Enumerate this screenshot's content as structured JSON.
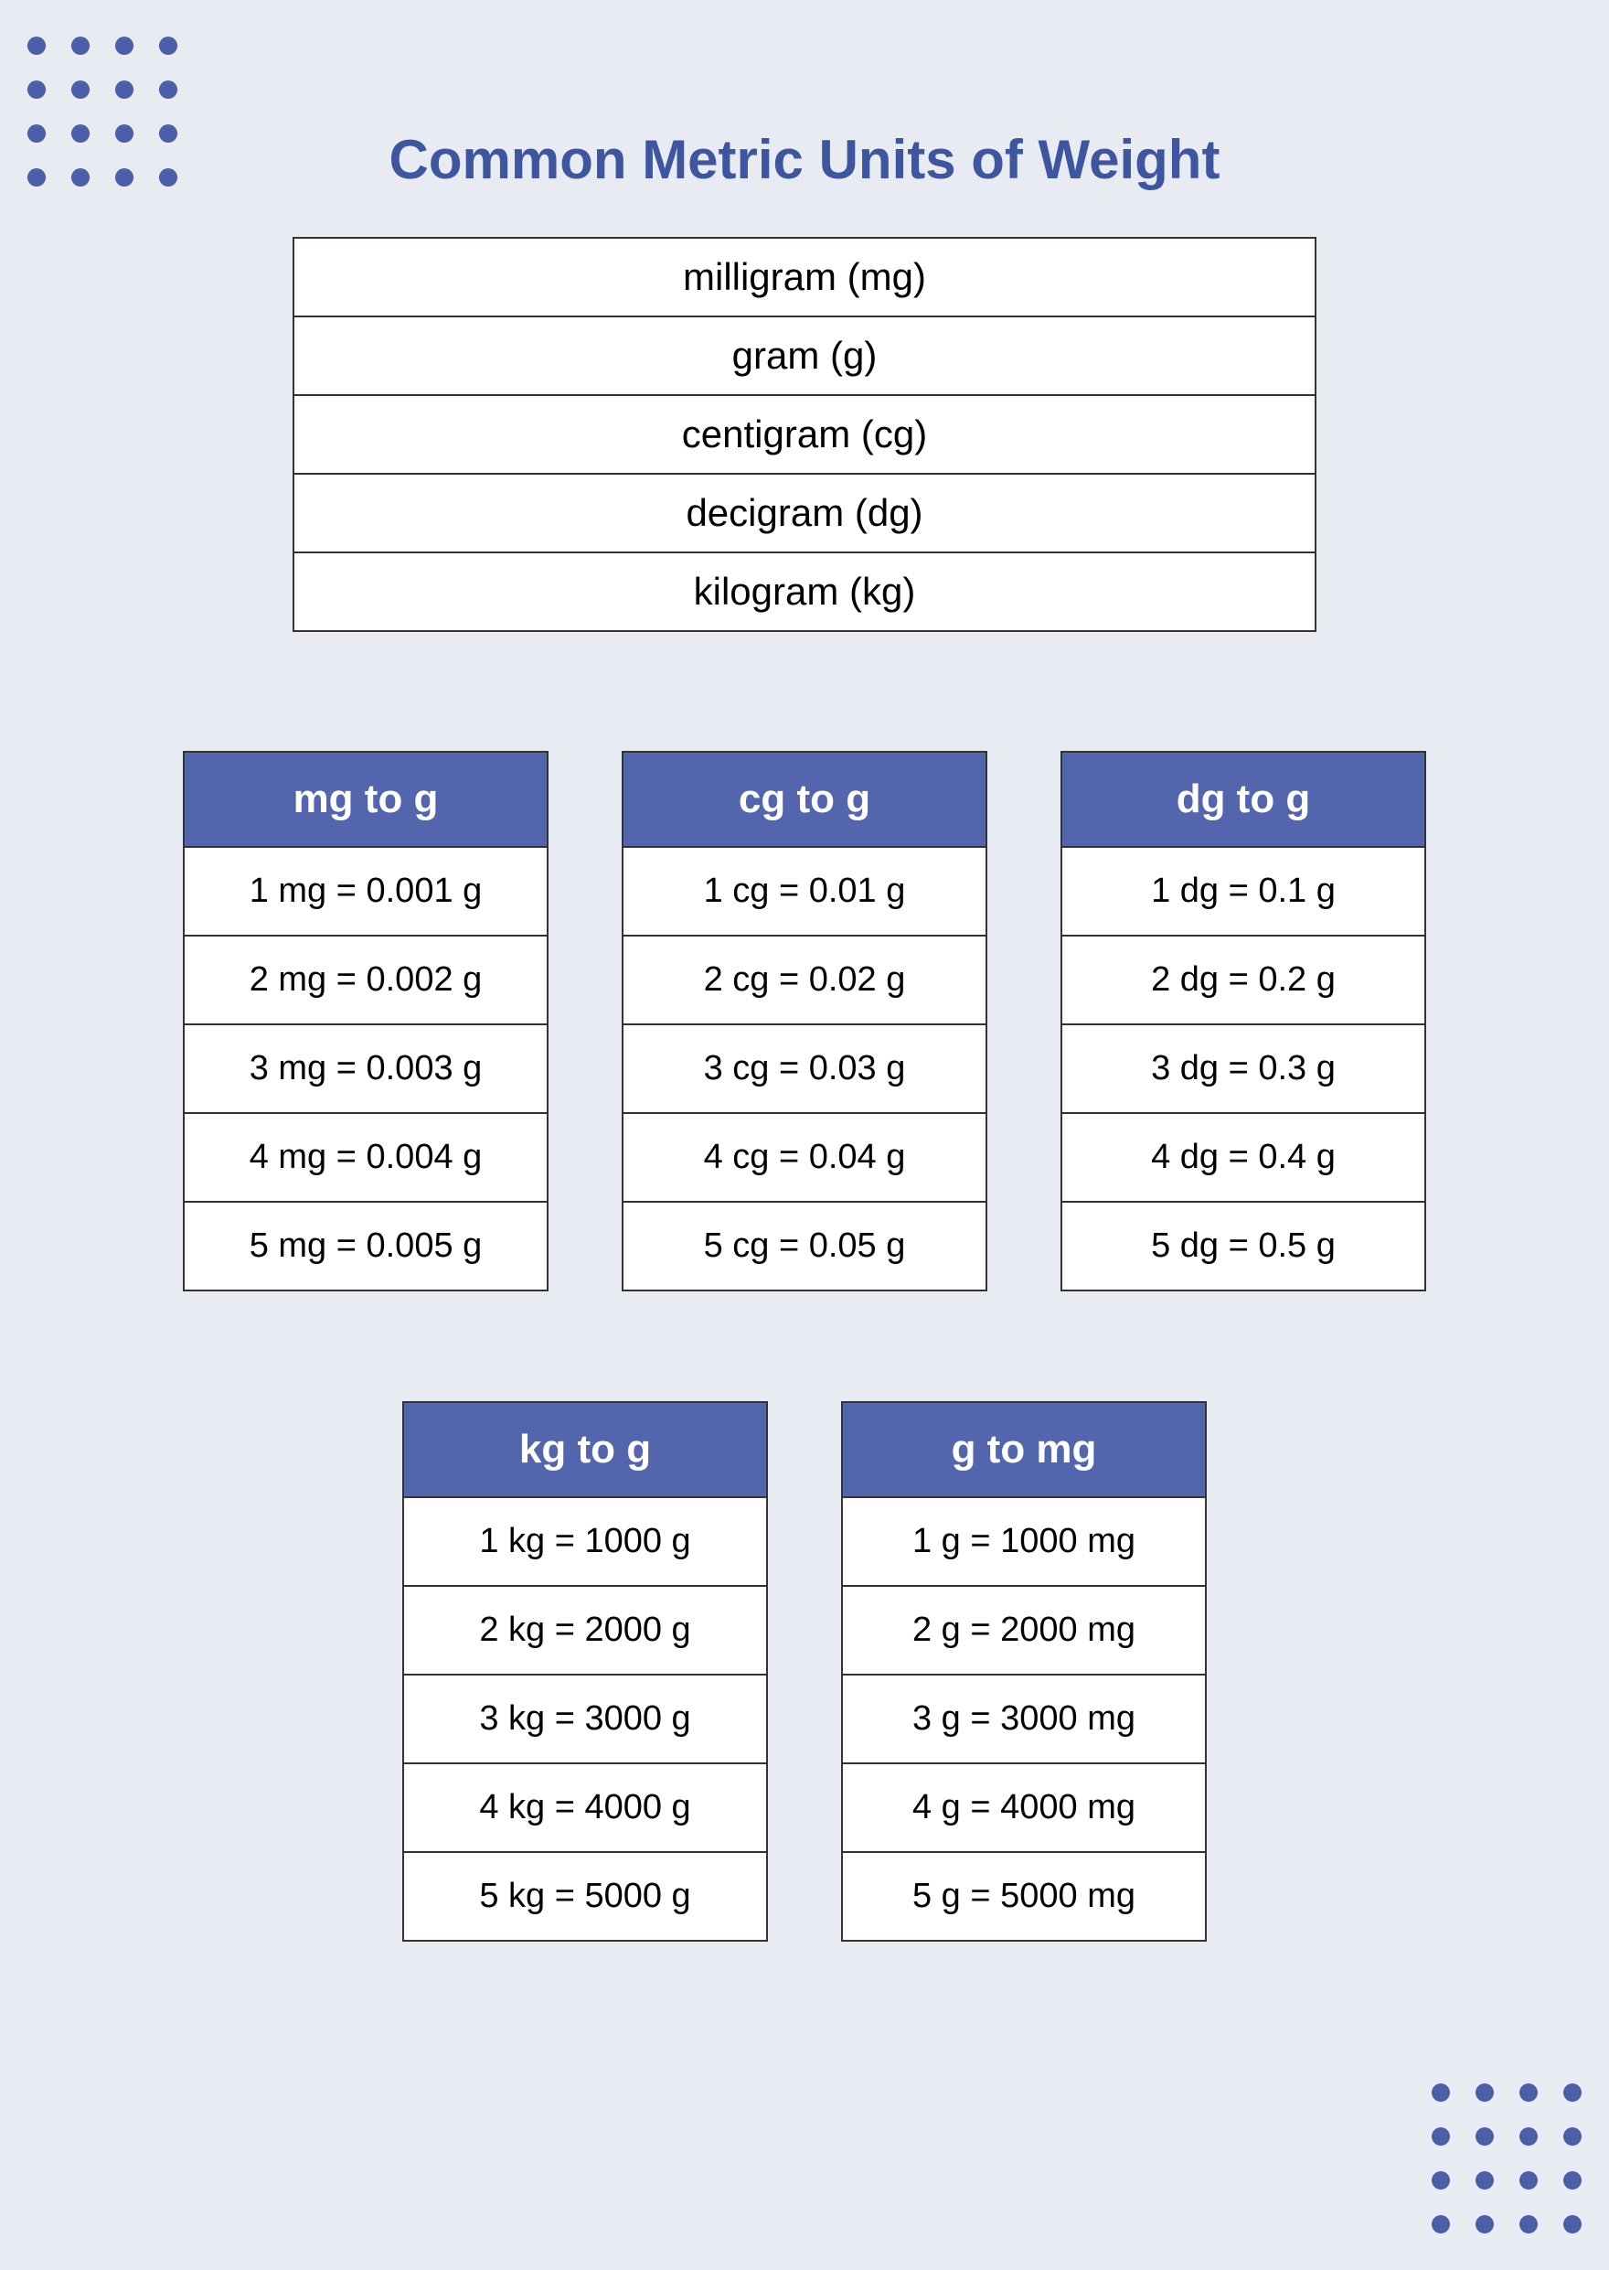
{
  "title": "Common Metric Units of Weight",
  "colors": {
    "background": "#e8ebf2",
    "accent": "#5365ad",
    "title": "#3d569f",
    "dot": "#4a5fa8",
    "border": "#333333",
    "card_bg": "#ffffff",
    "text": "#000000",
    "header_text": "#ffffff"
  },
  "units": [
    "milligram (mg)",
    "gram (g)",
    "centigram (cg)",
    "decigram (dg)",
    "kilogram (kg)"
  ],
  "conversion_cards_row1": [
    {
      "header": "mg to g",
      "rows": [
        "1 mg = 0.001 g",
        "2 mg = 0.002 g",
        "3 mg = 0.003 g",
        "4 mg = 0.004 g",
        "5 mg = 0.005 g"
      ]
    },
    {
      "header": "cg to g",
      "rows": [
        "1 cg = 0.01 g",
        "2 cg = 0.02 g",
        "3 cg  = 0.03 g",
        "4 cg = 0.04 g",
        "5 cg = 0.05 g"
      ]
    },
    {
      "header": "dg to g",
      "rows": [
        "1 dg = 0.1 g",
        "2 dg = 0.2 g",
        "3 dg = 0.3 g",
        "4 dg = 0.4 g",
        "5 dg = 0.5 g"
      ]
    }
  ],
  "conversion_cards_row2": [
    {
      "header": "kg to g",
      "rows": [
        "1 kg = 1000 g",
        "2 kg = 2000 g",
        "3 kg = 3000 g",
        "4 kg = 4000 g",
        "5 kg = 5000 g"
      ]
    },
    {
      "header": "g to mg",
      "rows": [
        "1 g = 1000 mg",
        "2 g = 2000 mg",
        "3 g = 3000 mg",
        "4 g = 4000 mg",
        "5 g = 5000 mg"
      ]
    }
  ]
}
